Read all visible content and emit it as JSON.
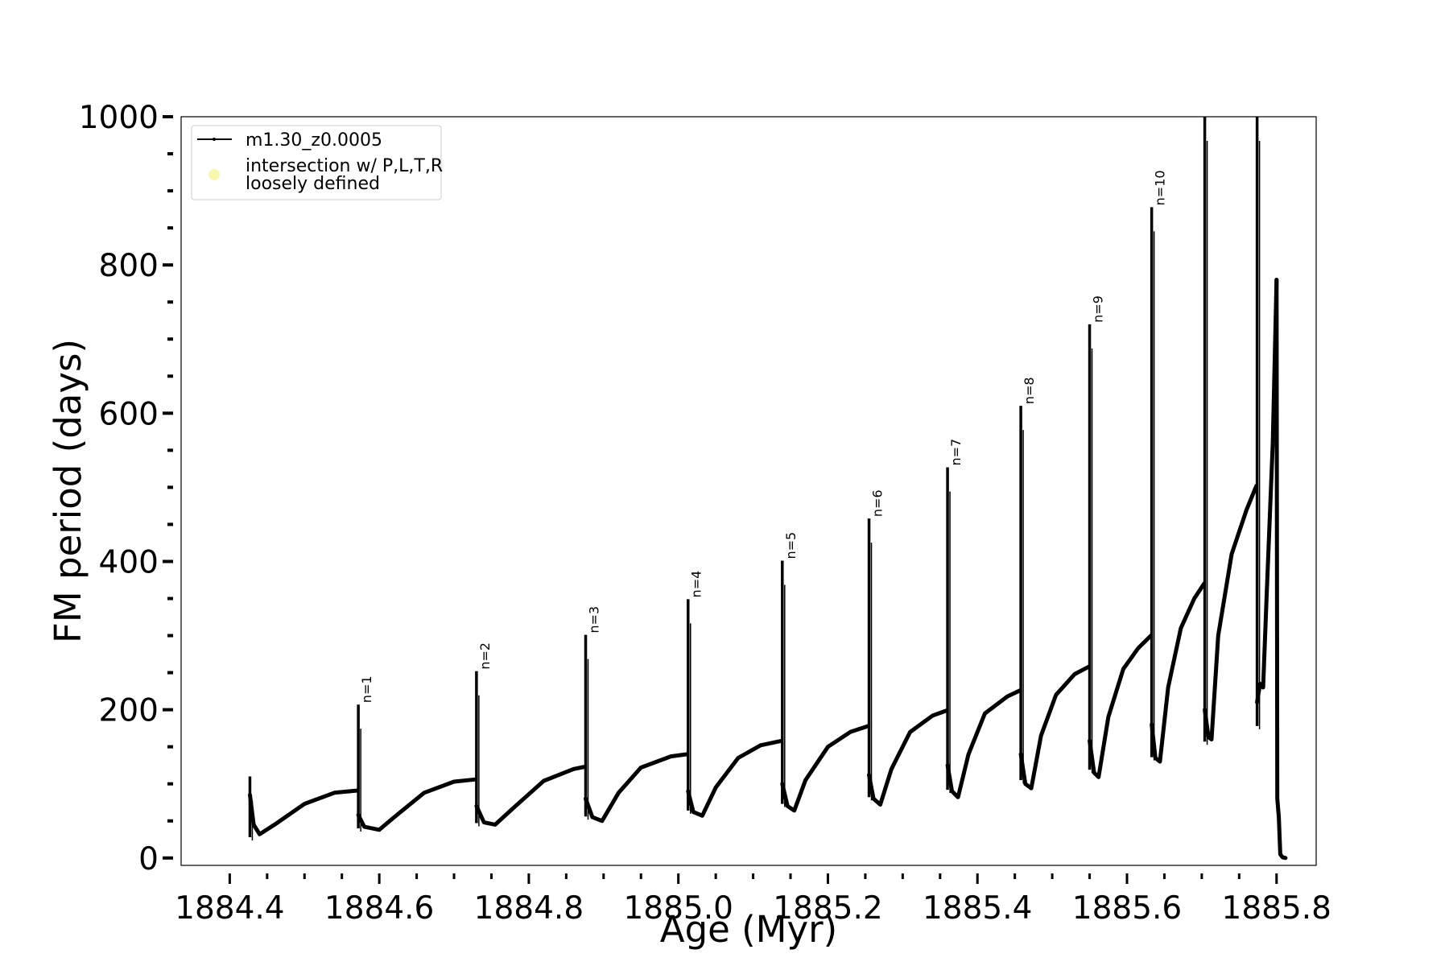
{
  "chart_data": {
    "type": "line",
    "title": "",
    "xlabel": "Age (Myr)",
    "ylabel": "FM period (days)",
    "xlim": [
      1884.335,
      1885.853
    ],
    "ylim": [
      -10,
      1000
    ],
    "grid": false,
    "legend_position": "top-left",
    "x_ticks": [
      "1884.4",
      "1884.6",
      "1884.8",
      "1885.0",
      "1885.2",
      "1885.4",
      "1885.6",
      "1885.8"
    ],
    "y_ticks": [
      "0",
      "200",
      "400",
      "600",
      "800",
      "1000"
    ],
    "legend": [
      {
        "label": "m1.30_z0.0005",
        "marker": "line",
        "color": "#000000"
      },
      {
        "label": "intersection w/ P,L,T,R loosely defined",
        "lines": [
          "intersection w/ P,L,T,R",
          "loosely defined"
        ],
        "marker": "circle",
        "color": "#f7f7b0"
      }
    ],
    "pulses": [
      {
        "label": "",
        "x": 1884.427,
        "peak": 110,
        "low": 28
      },
      {
        "label": "n=1",
        "x": 1884.572,
        "peak": 207,
        "low": 40
      },
      {
        "label": "n=2",
        "x": 1884.73,
        "peak": 252,
        "low": 47
      },
      {
        "label": "n=3",
        "x": 1884.876,
        "peak": 301,
        "low": 56
      },
      {
        "label": "n=4",
        "x": 1885.013,
        "peak": 349,
        "low": 64
      },
      {
        "label": "n=5",
        "x": 1885.139,
        "peak": 401,
        "low": 73
      },
      {
        "label": "n=6",
        "x": 1885.255,
        "peak": 458,
        "low": 82
      },
      {
        "label": "n=7",
        "x": 1885.36,
        "peak": 527,
        "low": 92
      },
      {
        "label": "n=8",
        "x": 1885.458,
        "peak": 610,
        "low": 105
      },
      {
        "label": "n=9",
        "x": 1885.55,
        "peak": 720,
        "low": 119
      },
      {
        "label": "n=10",
        "x": 1885.633,
        "peak": 878,
        "low": 136
      },
      {
        "label": "",
        "x": 1885.704,
        "peak": 1000,
        "low": 157
      },
      {
        "label": "",
        "x": 1885.774,
        "peak": 1000,
        "low": 178
      }
    ],
    "interpulse_segments": [
      {
        "x": [
          1884.427,
          1884.432,
          1884.44,
          1884.46,
          1884.5,
          1884.54,
          1884.571
        ],
        "y": [
          85,
          45,
          32,
          45,
          73,
          88,
          91
        ]
      },
      {
        "x": [
          1884.572,
          1884.58,
          1884.6,
          1884.62,
          1884.66,
          1884.7,
          1884.729
        ],
        "y": [
          58,
          42,
          38,
          55,
          88,
          103,
          106
        ]
      },
      {
        "x": [
          1884.73,
          1884.74,
          1884.755,
          1884.78,
          1884.82,
          1884.86,
          1884.875
        ],
        "y": [
          70,
          48,
          45,
          68,
          104,
          120,
          123
        ]
      },
      {
        "x": [
          1884.876,
          1884.885,
          1884.898,
          1884.92,
          1884.95,
          1884.99,
          1885.012
        ],
        "y": [
          80,
          55,
          50,
          88,
          122,
          137,
          140
        ]
      },
      {
        "x": [
          1885.013,
          1885.02,
          1885.032,
          1885.05,
          1885.08,
          1885.11,
          1885.138
        ],
        "y": [
          90,
          62,
          57,
          95,
          135,
          152,
          158
        ]
      },
      {
        "x": [
          1885.139,
          1885.146,
          1885.155,
          1885.17,
          1885.2,
          1885.23,
          1885.254
        ],
        "y": [
          100,
          70,
          64,
          105,
          150,
          170,
          178
        ]
      },
      {
        "x": [
          1885.255,
          1885.261,
          1885.27,
          1885.285,
          1885.31,
          1885.34,
          1885.359
        ],
        "y": [
          112,
          80,
          72,
          120,
          170,
          192,
          199
        ]
      },
      {
        "x": [
          1885.36,
          1885.366,
          1885.374,
          1885.388,
          1885.41,
          1885.44,
          1885.457
        ],
        "y": [
          125,
          90,
          82,
          140,
          195,
          218,
          226
        ]
      },
      {
        "x": [
          1885.458,
          1885.464,
          1885.472,
          1885.485,
          1885.505,
          1885.53,
          1885.549
        ],
        "y": [
          140,
          100,
          94,
          165,
          220,
          248,
          258
        ]
      },
      {
        "x": [
          1885.55,
          1885.556,
          1885.562,
          1885.575,
          1885.595,
          1885.615,
          1885.632
        ],
        "y": [
          158,
          115,
          109,
          190,
          255,
          283,
          300
        ]
      },
      {
        "x": [
          1885.633,
          1885.638,
          1885.644,
          1885.655,
          1885.672,
          1885.69,
          1885.703
        ],
        "y": [
          180,
          135,
          130,
          230,
          310,
          350,
          370
        ]
      },
      {
        "x": [
          1885.704,
          1885.709,
          1885.713,
          1885.722,
          1885.74,
          1885.76,
          1885.773
        ],
        "y": [
          200,
          163,
          160,
          300,
          410,
          470,
          502
        ]
      },
      {
        "x": [
          1885.774,
          1885.778,
          1885.782,
          1885.787,
          1885.795,
          1885.8
        ],
        "y": [
          210,
          235,
          230,
          360,
          560,
          780
        ]
      },
      {
        "x": [
          1885.8,
          1885.801,
          1885.803,
          1885.805,
          1885.808,
          1885.812
        ],
        "y": [
          780,
          80,
          55,
          5,
          1,
          0
        ]
      }
    ]
  }
}
